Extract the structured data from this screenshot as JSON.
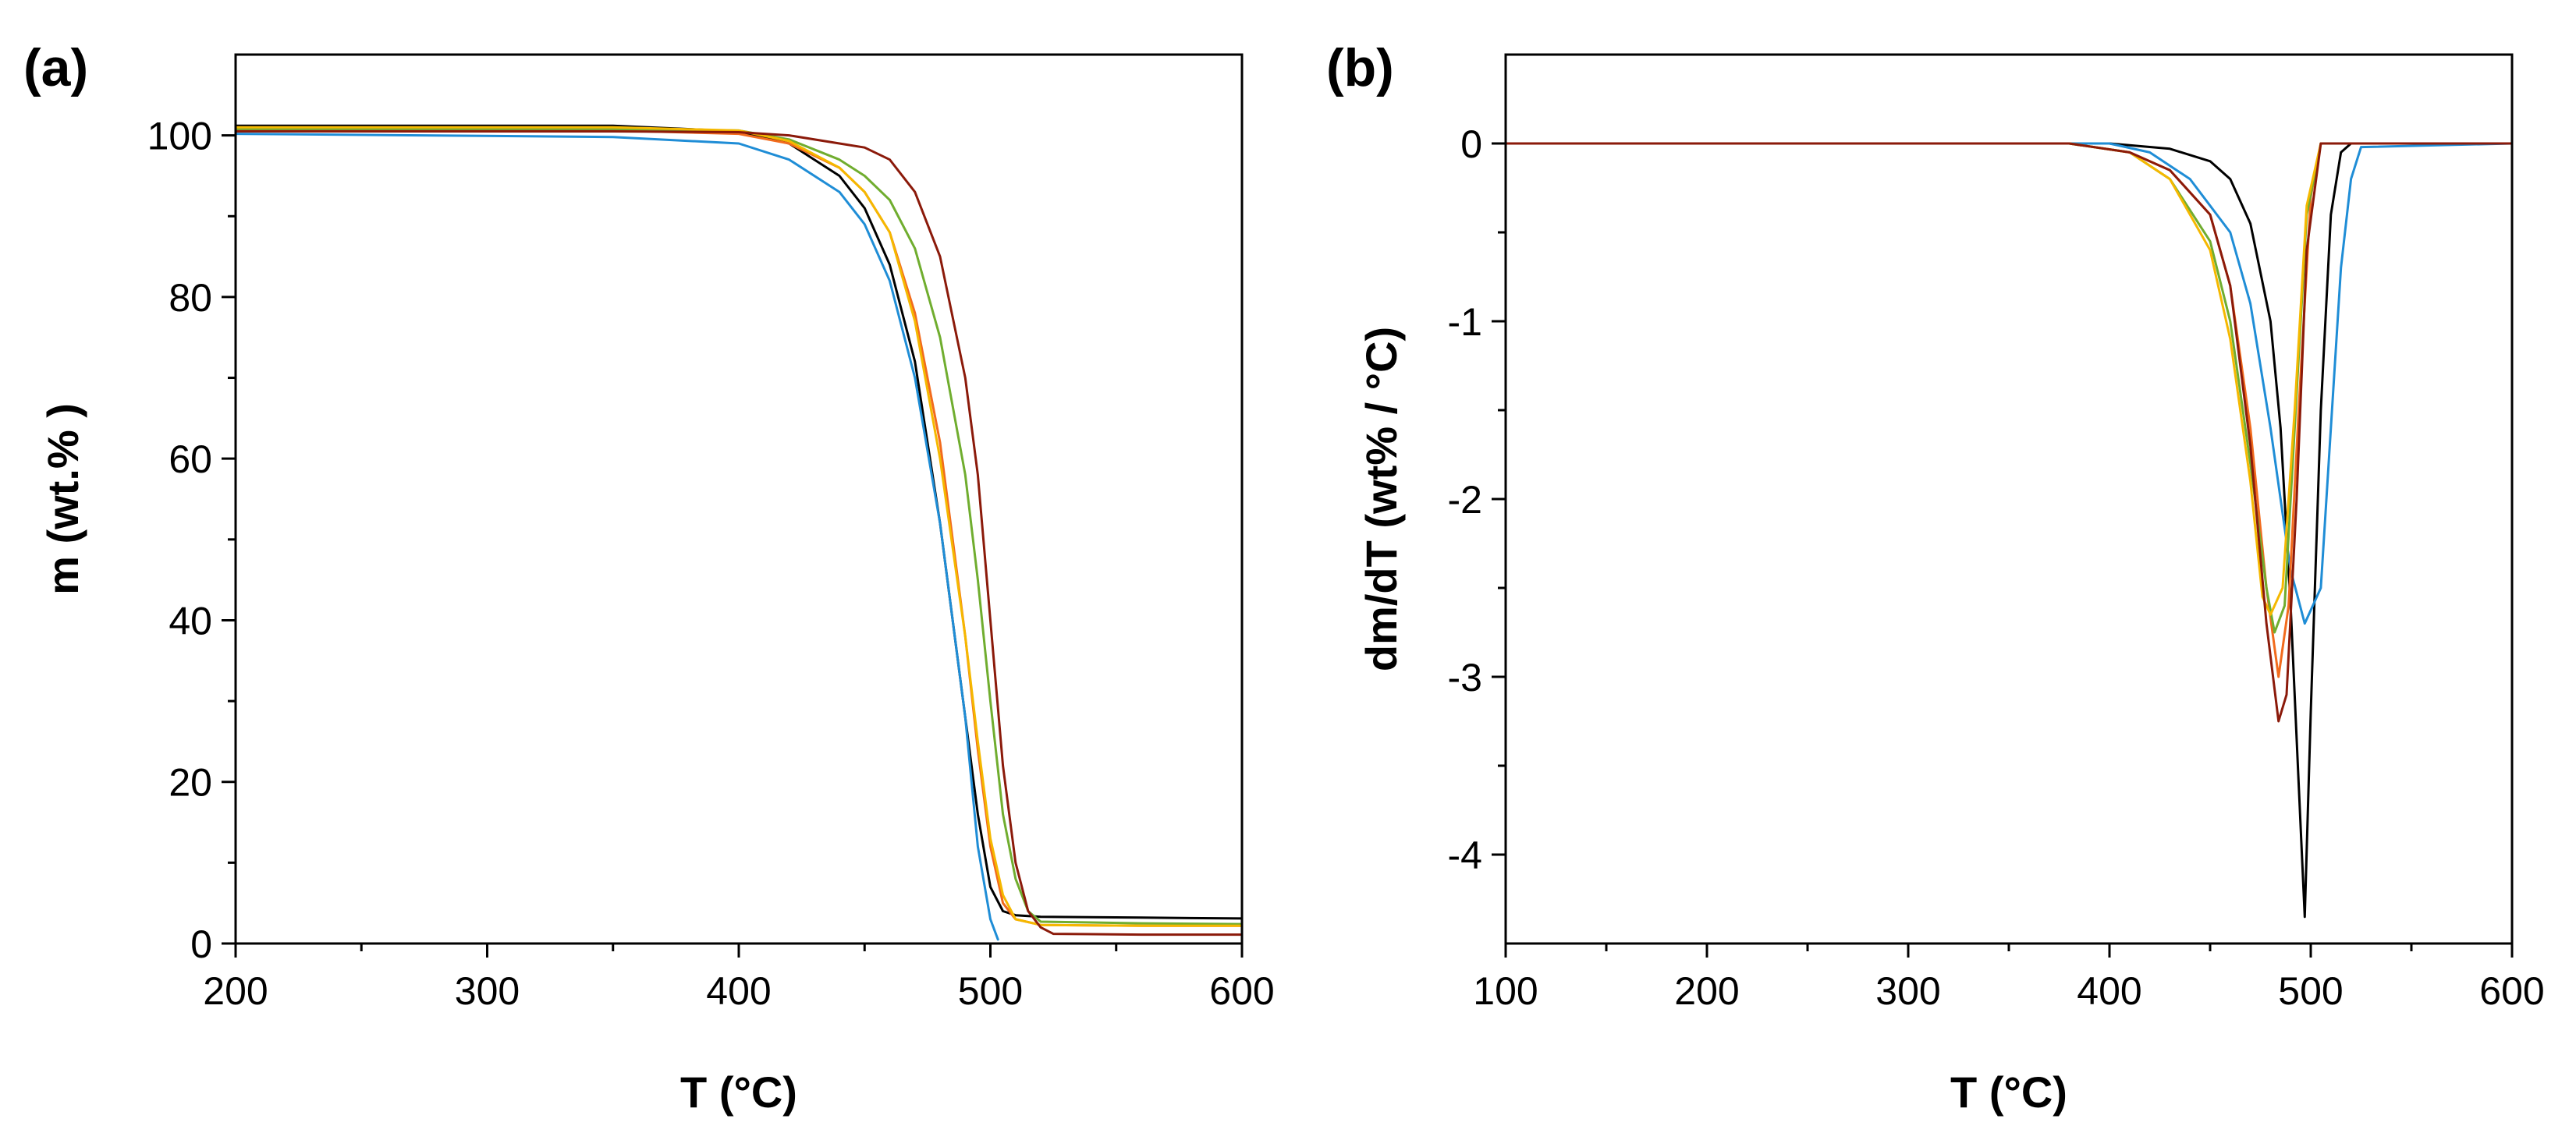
{
  "chart_data": [
    {
      "panel_label": "(a)",
      "type": "line",
      "title": "",
      "xlabel": "T (°C)",
      "ylabel": "m (wt.% )",
      "xlim": [
        200,
        600
      ],
      "ylim": [
        0,
        110
      ],
      "xticks": [
        200,
        300,
        400,
        500,
        600
      ],
      "yticks": [
        0,
        20,
        40,
        60,
        80,
        100
      ],
      "xtick_labels": [
        "200",
        "300",
        "400",
        "500",
        "600"
      ],
      "ytick_labels": [
        "0",
        "20",
        "40",
        "60",
        "80",
        "100"
      ],
      "grid": false,
      "series": [
        {
          "name": "black",
          "color": "#000000",
          "x": [
            200,
            350,
            400,
            420,
            440,
            450,
            460,
            470,
            480,
            490,
            495,
            500,
            505,
            510,
            520,
            560,
            600
          ],
          "y": [
            101.2,
            101.2,
            100.5,
            99,
            95,
            91,
            84,
            72,
            52,
            28,
            16,
            7,
            4,
            3.5,
            3.3,
            3.2,
            3.1
          ]
        },
        {
          "name": "blue",
          "color": "#1f8dd6",
          "x": [
            200,
            350,
            400,
            420,
            440,
            450,
            460,
            470,
            480,
            490,
            495,
            500,
            503
          ],
          "y": [
            100.2,
            99.8,
            99,
            97,
            93,
            89,
            82,
            70,
            52,
            28,
            12,
            3,
            0.5
          ]
        },
        {
          "name": "orange",
          "color": "#f26b1d",
          "x": [
            200,
            350,
            400,
            420,
            440,
            450,
            460,
            470,
            480,
            490,
            495,
            500,
            505,
            510,
            520,
            560,
            600
          ],
          "y": [
            100.6,
            100.6,
            100.2,
            99,
            96,
            93,
            88,
            78,
            62,
            38,
            24,
            12,
            5,
            3,
            2.3,
            2.2,
            2.2
          ]
        },
        {
          "name": "green",
          "color": "#70ad2f",
          "x": [
            200,
            350,
            400,
            420,
            440,
            450,
            460,
            470,
            480,
            490,
            495,
            500,
            505,
            510,
            515,
            520,
            560,
            600
          ],
          "y": [
            100.8,
            100.8,
            100.6,
            99.5,
            97,
            95,
            92,
            86,
            75,
            58,
            45,
            30,
            16,
            8,
            4,
            2.7,
            2.5,
            2.4
          ]
        },
        {
          "name": "yellow",
          "color": "#f5b800",
          "x": [
            200,
            350,
            400,
            420,
            440,
            450,
            460,
            470,
            480,
            490,
            495,
            500,
            505,
            510,
            520,
            560,
            600
          ],
          "y": [
            101,
            101,
            100.6,
            99.3,
            96,
            93,
            88,
            77,
            60,
            38,
            25,
            13,
            6,
            3,
            2.3,
            2.2,
            2.2
          ]
        },
        {
          "name": "darkred",
          "color": "#8b1a0a",
          "x": [
            200,
            350,
            400,
            420,
            440,
            450,
            460,
            470,
            480,
            490,
            495,
            500,
            505,
            510,
            515,
            520,
            525,
            560,
            600
          ],
          "y": [
            100.5,
            100.5,
            100.4,
            100,
            99,
            98.5,
            97,
            93,
            85,
            70,
            58,
            40,
            22,
            10,
            4,
            2,
            1.2,
            1.1,
            1.1
          ]
        }
      ]
    },
    {
      "panel_label": "(b)",
      "type": "line",
      "title": "",
      "xlabel": "T (°C)",
      "ylabel": "dm/dT (wt% / °C)",
      "xlim": [
        100,
        600
      ],
      "ylim": [
        -4.5,
        0.5
      ],
      "xticks": [
        100,
        200,
        300,
        400,
        500,
        600
      ],
      "yticks": [
        -4,
        -3,
        -2,
        -1,
        0
      ],
      "xtick_labels": [
        "100",
        "200",
        "300",
        "400",
        "500",
        "600"
      ],
      "ytick_labels": [
        "-4",
        "-3",
        "-2",
        "-1",
        "0"
      ],
      "grid": false,
      "series": [
        {
          "name": "black",
          "color": "#000000",
          "x": [
            100,
            400,
            430,
            450,
            460,
            470,
            480,
            485,
            490,
            494,
            497,
            500,
            505,
            510,
            515,
            520,
            600
          ],
          "y": [
            0,
            0,
            -0.03,
            -0.1,
            -0.2,
            -0.45,
            -1.0,
            -1.6,
            -2.6,
            -3.6,
            -4.35,
            -3.2,
            -1.5,
            -0.4,
            -0.05,
            0,
            0
          ]
        },
        {
          "name": "blue",
          "color": "#1f8dd6",
          "x": [
            100,
            400,
            420,
            440,
            460,
            470,
            480,
            490,
            497,
            505,
            510,
            515,
            520,
            525,
            600
          ],
          "y": [
            0,
            0,
            -0.05,
            -0.2,
            -0.5,
            -0.9,
            -1.6,
            -2.4,
            -2.7,
            -2.5,
            -1.6,
            -0.7,
            -0.2,
            -0.02,
            0
          ]
        },
        {
          "name": "orange",
          "color": "#f26b1d",
          "x": [
            100,
            380,
            410,
            430,
            450,
            460,
            470,
            478,
            484,
            489,
            494,
            500,
            505,
            600
          ],
          "y": [
            0,
            0,
            -0.05,
            -0.15,
            -0.4,
            -0.8,
            -1.6,
            -2.5,
            -3.0,
            -2.6,
            -1.5,
            -0.3,
            0,
            0
          ]
        },
        {
          "name": "green",
          "color": "#70ad2f",
          "x": [
            100,
            380,
            410,
            430,
            450,
            460,
            470,
            478,
            482,
            487,
            492,
            498,
            505,
            600
          ],
          "y": [
            0,
            0,
            -0.05,
            -0.2,
            -0.55,
            -1.0,
            -1.8,
            -2.5,
            -2.75,
            -2.6,
            -1.6,
            -0.4,
            0,
            0
          ]
        },
        {
          "name": "yellow",
          "color": "#f5b800",
          "x": [
            100,
            380,
            410,
            430,
            450,
            460,
            470,
            476,
            480,
            486,
            492,
            498,
            505,
            600
          ],
          "y": [
            0,
            0,
            -0.05,
            -0.2,
            -0.6,
            -1.1,
            -1.9,
            -2.55,
            -2.65,
            -2.5,
            -1.5,
            -0.35,
            0,
            0
          ]
        },
        {
          "name": "darkred",
          "color": "#8b1a0a",
          "x": [
            100,
            380,
            410,
            430,
            450,
            460,
            470,
            478,
            484,
            488,
            493,
            498,
            505,
            600
          ],
          "y": [
            0,
            0,
            -0.05,
            -0.15,
            -0.4,
            -0.8,
            -1.7,
            -2.7,
            -3.25,
            -3.1,
            -2.0,
            -0.6,
            0,
            0
          ]
        }
      ]
    }
  ]
}
